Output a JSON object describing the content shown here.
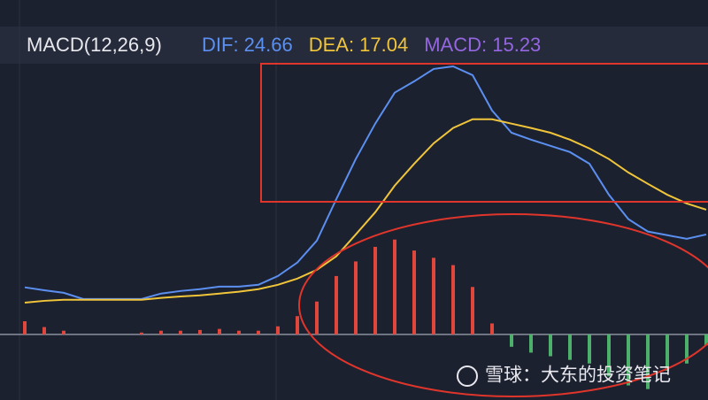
{
  "chart_data": {
    "type": "line",
    "title": "MACD(12,26,9)",
    "watermark": "雪球：大东的投资笔记",
    "ylim": [
      -18,
      82
    ],
    "series": [
      {
        "name": "DIF: 24.66",
        "type": "line",
        "color": "#5b8ff0",
        "values": [
          12.9,
          12.1,
          11.4,
          9.7,
          9.7,
          9.7,
          9.7,
          11.2,
          11.9,
          12.4,
          13.1,
          13.1,
          13.6,
          16.0,
          19.7,
          25.7,
          37.1,
          48.1,
          57.8,
          66.3,
          69.4,
          72.8,
          73.5,
          71.1,
          61.4,
          55.3,
          53.4,
          51.7,
          50.0,
          46.8,
          38.3,
          31.6,
          28.2,
          27.2,
          26.2,
          27.4
        ]
      },
      {
        "name": "DEA: 17.04",
        "type": "line",
        "color": "#f0c53a",
        "values": [
          8.7,
          9.2,
          9.5,
          9.5,
          9.5,
          9.5,
          9.5,
          10.0,
          10.4,
          10.7,
          11.2,
          11.7,
          12.4,
          13.6,
          15.3,
          17.7,
          21.4,
          27.4,
          33.5,
          40.8,
          46.8,
          52.4,
          56.6,
          59.0,
          59.0,
          57.8,
          56.6,
          55.3,
          53.4,
          51.0,
          48.1,
          44.4,
          41.3,
          38.3,
          35.9,
          34.2
        ]
      },
      {
        "name": "MACD: 15.23",
        "type": "bar",
        "color": "#e0463c",
        "negative_color": "#4caf6a",
        "label_color": "#9466e0",
        "values": [
          3.6,
          2,
          1,
          0,
          0,
          0,
          0.5,
          1,
          1,
          1.2,
          1.5,
          1,
          1,
          2.2,
          5,
          9,
          16,
          20,
          24,
          26,
          23,
          21,
          19,
          13,
          3,
          -3.4,
          -5,
          -6,
          -7,
          -8,
          -11.5,
          -14,
          -15,
          -10,
          -8,
          -3
        ]
      }
    ]
  }
}
